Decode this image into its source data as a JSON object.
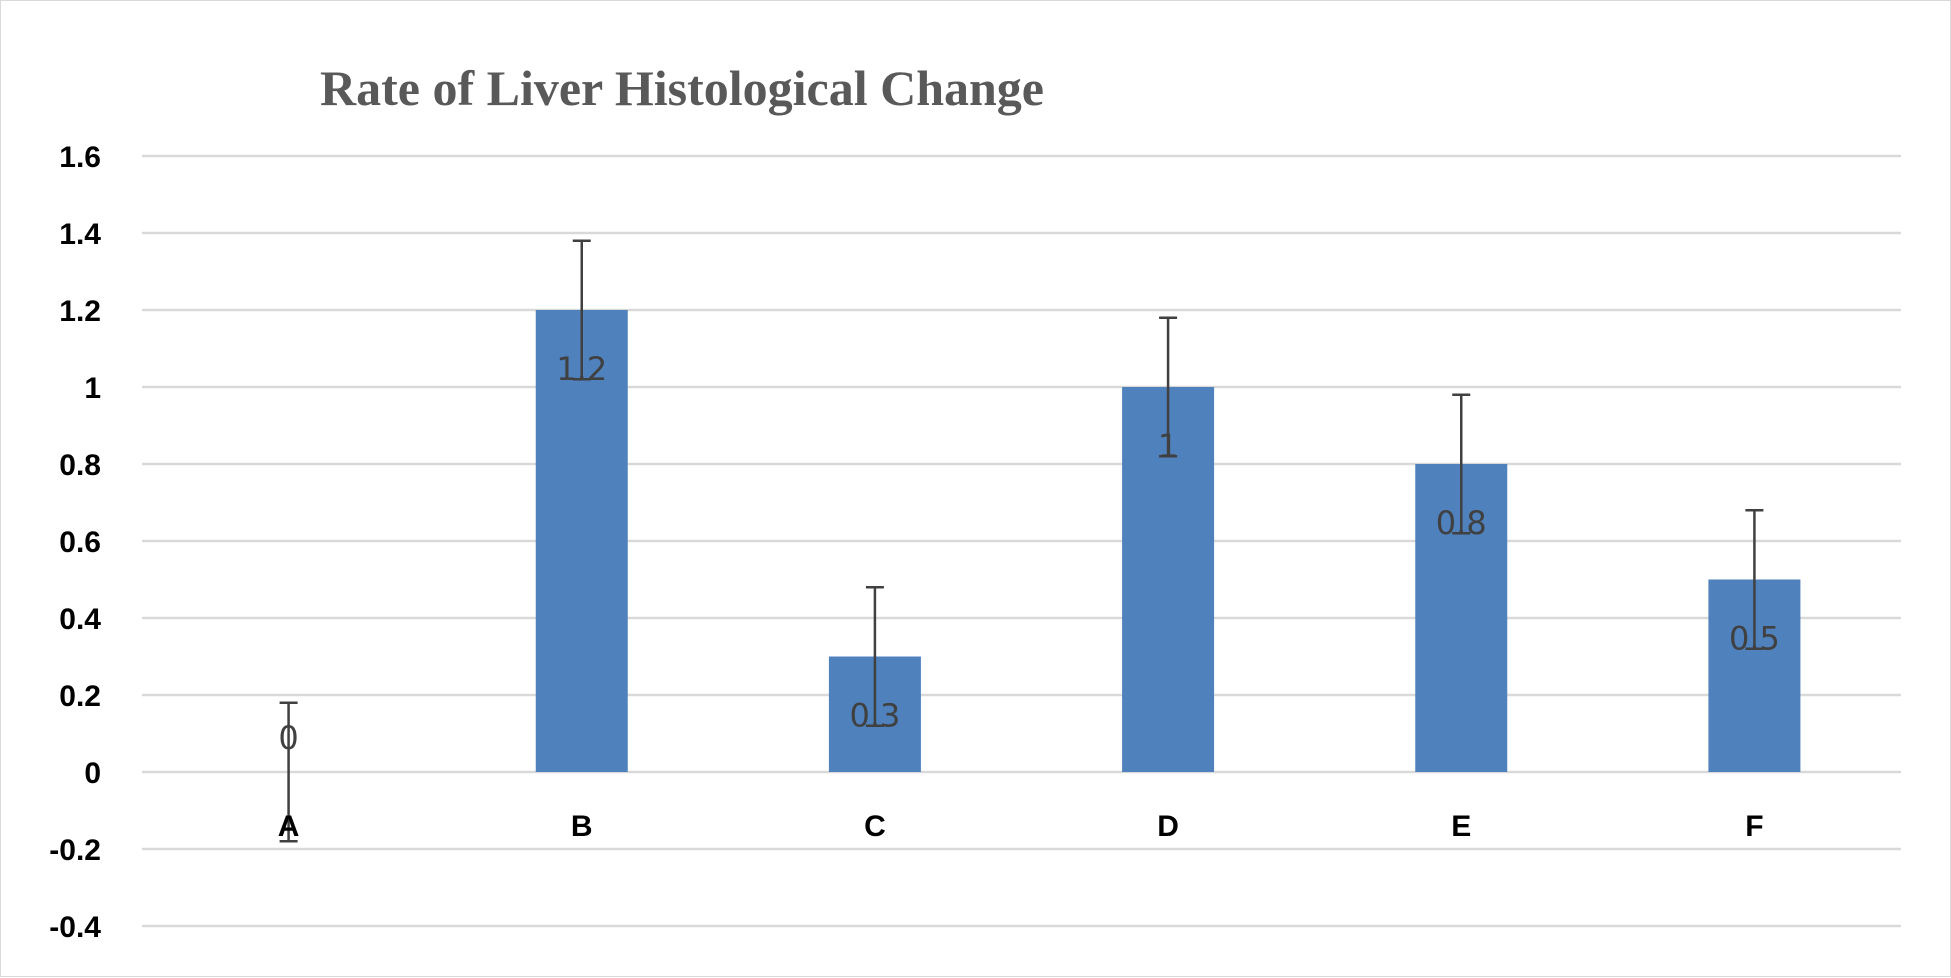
{
  "chart_data": {
    "type": "bar",
    "title": "Rate of Liver Histological Change",
    "xlabel": "",
    "ylabel": "",
    "categories": [
      "A",
      "B",
      "C",
      "D",
      "E",
      "F"
    ],
    "values": [
      0,
      1.2,
      0.3,
      1,
      0.8,
      0.5
    ],
    "error_bars": [
      0.18,
      0.18,
      0.18,
      0.18,
      0.18,
      0.18
    ],
    "data_labels": [
      "0",
      "1.2",
      "0.3",
      "1",
      "0.8",
      "0.5"
    ],
    "ylim": [
      -0.4,
      1.6
    ],
    "yticks": [
      -0.4,
      -0.2,
      0,
      0.2,
      0.4,
      0.6,
      0.8,
      1,
      1.2,
      1.4,
      1.6
    ],
    "ytick_labels": [
      "-0.4",
      "-0.2",
      "0",
      "0.2",
      "0.4",
      "0.6",
      "0.8",
      "1",
      "1.2",
      "1.4",
      "1.6"
    ],
    "grid": true,
    "legend": "none",
    "colors": {
      "bar": "#4f81bd",
      "grid": "#d9d9d9",
      "error_bar": "#404040",
      "title": "#595959",
      "data_label": "#404040"
    }
  }
}
